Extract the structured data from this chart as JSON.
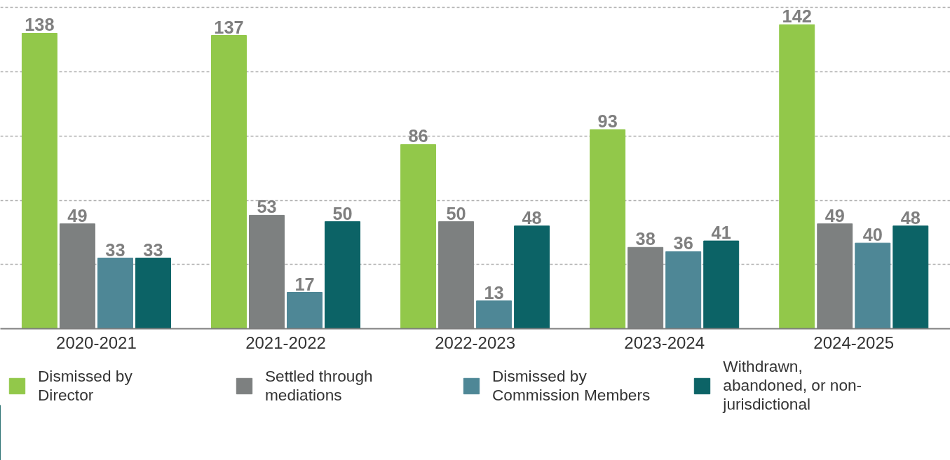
{
  "chart_data": {
    "type": "bar",
    "categories": [
      "2020-2021",
      "2021-2022",
      "2022-2023",
      "2023-2024",
      "2024-2025"
    ],
    "series": [
      {
        "name": "Dismissed by Director",
        "color": "#92c84a",
        "values": [
          138,
          137,
          86,
          93,
          142
        ]
      },
      {
        "name": "Settled through mediations",
        "color": "#7d8080",
        "values": [
          49,
          53,
          50,
          38,
          49
        ]
      },
      {
        "name": "Dismissed by Commission Members",
        "color": "#4e8796",
        "values": [
          33,
          17,
          13,
          36,
          40
        ]
      },
      {
        "name": "Withdrawn, abandoned, or non-jurisdictional",
        "color": "#0c6366",
        "values": [
          33,
          50,
          48,
          41,
          48
        ]
      }
    ],
    "yticks": [
      {
        "value": 30,
        "label": null
      },
      {
        "value": 60,
        "label": null
      },
      {
        "value": 90,
        "label": null
      },
      {
        "value": 120,
        "label": null
      },
      {
        "value": 150,
        "label": null
      }
    ],
    "tick_labels": "x",
    "grid": "y",
    "legend": "bottom",
    "data_labels": true
  }
}
